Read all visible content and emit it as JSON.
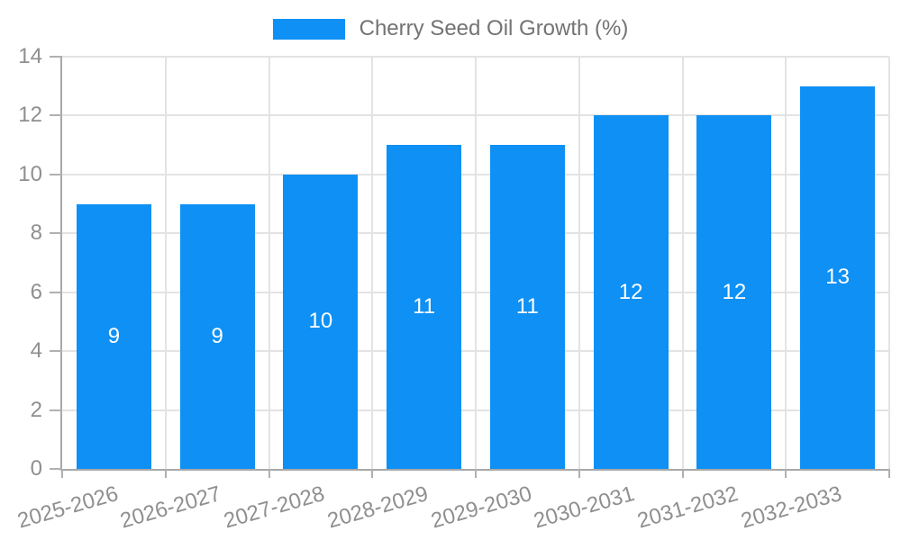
{
  "legend": {
    "label": "Cherry Seed Oil Growth (%)"
  },
  "chart_data": {
    "type": "bar",
    "title": "Cherry Seed Oil Growth (%)",
    "categories": [
      "2025-2026",
      "2026-2027",
      "2027-2028",
      "2028-2029",
      "2029-2030",
      "2030-2031",
      "2031-2032",
      "2032-2033"
    ],
    "values": [
      9,
      9,
      10,
      11,
      11,
      12,
      12,
      13
    ],
    "xlabel": "",
    "ylabel": "",
    "ylim": [
      0,
      14
    ],
    "yticks": [
      0,
      2,
      4,
      6,
      8,
      10,
      12,
      14
    ],
    "grid": true,
    "legend_position": "top-center",
    "value_labels_position": "inside-center",
    "x_label_rotation_deg": -16
  },
  "colors": {
    "bar": "#0e90f4",
    "grid": "#e3e3e3",
    "axis": "#a8a8a8",
    "tick": "#b0b0b0",
    "tick_label": "#8f8f8f",
    "legend_text": "#737373",
    "value_label": "#ffffff",
    "background": "#ffffff"
  }
}
